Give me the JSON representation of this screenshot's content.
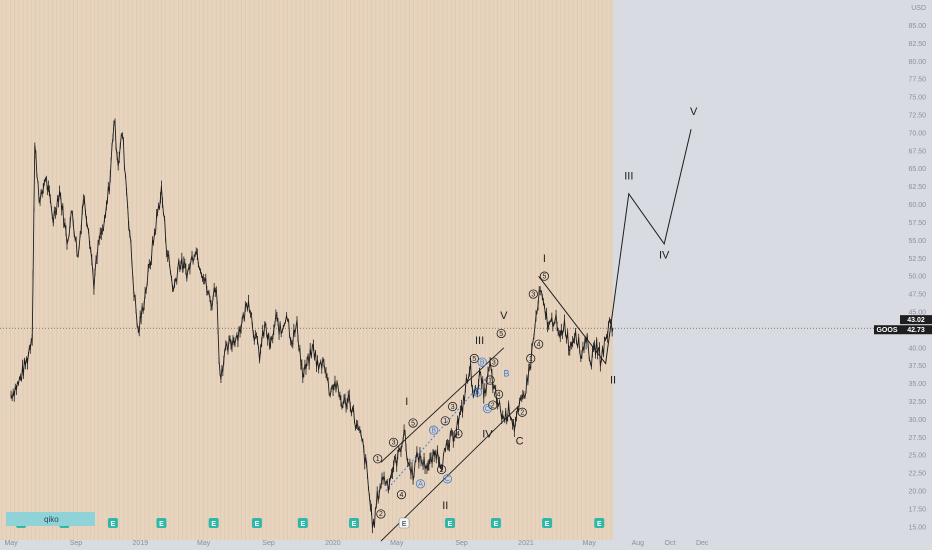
{
  "chart_data": {
    "type": "line",
    "symbol": "GOOS",
    "currency": "USD",
    "last_price": 42.73,
    "high_marker": 43.02,
    "y_axis": {
      "min": 14,
      "max": 88,
      "ticks": [
        "15.00",
        "17.50",
        "20.00",
        "22.50",
        "25.00",
        "27.50",
        "30.00",
        "32.50",
        "35.00",
        "37.50",
        "40.00",
        "42.50",
        "45.00",
        "47.50",
        "50.00",
        "52.50",
        "55.00",
        "57.50",
        "60.00",
        "62.50",
        "65.00",
        "67.50",
        "70.00",
        "72.50",
        "75.00",
        "77.50",
        "80.00",
        "82.50",
        "85.00"
      ]
    },
    "x_axis": {
      "labels": [
        "May",
        "Sep",
        "2019",
        "May",
        "Sep",
        "2020",
        "May",
        "Sep",
        "2021",
        "May",
        "Aug",
        "Oct",
        "Dec"
      ]
    },
    "price_series": [
      [
        "2018-05-01",
        33.5
      ],
      [
        "2018-05-15",
        35.0
      ],
      [
        "2018-06-01",
        38.5
      ],
      [
        "2018-06-10",
        42.0
      ],
      [
        "2018-06-15",
        68.0
      ],
      [
        "2018-06-25",
        60.0
      ],
      [
        "2018-07-05",
        64.0
      ],
      [
        "2018-07-20",
        58.0
      ],
      [
        "2018-08-01",
        62.0
      ],
      [
        "2018-08-15",
        55.0
      ],
      [
        "2018-08-25",
        59.0
      ],
      [
        "2018-09-05",
        52.5
      ],
      [
        "2018-09-15",
        61.0
      ],
      [
        "2018-09-25",
        57.0
      ],
      [
        "2018-10-05",
        49.0
      ],
      [
        "2018-10-15",
        55.0
      ],
      [
        "2018-10-25",
        57.0
      ],
      [
        "2018-11-05",
        64.0
      ],
      [
        "2018-11-12",
        72.0
      ],
      [
        "2018-11-20",
        66.0
      ],
      [
        "2018-11-28",
        70.0
      ],
      [
        "2018-12-10",
        58.0
      ],
      [
        "2018-12-20",
        48.0
      ],
      [
        "2018-12-28",
        42.0
      ],
      [
        "2019-01-10",
        47.5
      ],
      [
        "2019-01-20",
        52.0
      ],
      [
        "2019-02-01",
        58.0
      ],
      [
        "2019-02-10",
        62.0
      ],
      [
        "2019-02-20",
        54.0
      ],
      [
        "2019-03-05",
        48.0
      ],
      [
        "2019-03-15",
        52.0
      ],
      [
        "2019-04-01",
        50.5
      ],
      [
        "2019-04-15",
        54.0
      ],
      [
        "2019-05-01",
        50.0
      ],
      [
        "2019-05-15",
        46.0
      ],
      [
        "2019-05-25",
        49.0
      ],
      [
        "2019-06-01",
        36.0
      ],
      [
        "2019-06-10",
        39.0
      ],
      [
        "2019-06-20",
        40.5
      ],
      [
        "2019-07-05",
        42.0
      ],
      [
        "2019-07-15",
        44.0
      ],
      [
        "2019-07-25",
        47.0
      ],
      [
        "2019-08-05",
        42.0
      ],
      [
        "2019-08-15",
        39.0
      ],
      [
        "2019-08-25",
        43.0
      ],
      [
        "2019-09-05",
        40.0
      ],
      [
        "2019-09-15",
        44.0
      ],
      [
        "2019-09-25",
        42.0
      ],
      [
        "2019-10-05",
        45.0
      ],
      [
        "2019-10-15",
        41.0
      ],
      [
        "2019-10-25",
        43.0
      ],
      [
        "2019-11-05",
        36.0
      ],
      [
        "2019-11-15",
        38.0
      ],
      [
        "2019-11-25",
        40.0
      ],
      [
        "2019-12-05",
        37.0
      ],
      [
        "2019-12-15",
        38.5
      ],
      [
        "2019-12-25",
        34.0
      ],
      [
        "2020-01-05",
        35.0
      ],
      [
        "2020-01-20",
        32.0
      ],
      [
        "2020-02-01",
        33.0
      ],
      [
        "2020-02-15",
        29.0
      ],
      [
        "2020-02-25",
        27.0
      ],
      [
        "2020-03-05",
        23.0
      ],
      [
        "2020-03-12",
        18.0
      ],
      [
        "2020-03-18",
        14.8
      ],
      [
        "2020-03-25",
        19.0
      ],
      [
        "2020-04-05",
        22.0
      ],
      [
        "2020-04-15",
        21.0
      ],
      [
        "2020-04-25",
        23.5
      ],
      [
        "2020-05-05",
        25.0
      ],
      [
        "2020-05-15",
        28.5
      ],
      [
        "2020-05-22",
        24.0
      ],
      [
        "2020-06-01",
        22.5
      ],
      [
        "2020-06-10",
        25.0
      ],
      [
        "2020-06-20",
        24.0
      ],
      [
        "2020-07-01",
        23.5
      ],
      [
        "2020-07-15",
        25.5
      ],
      [
        "2020-07-25",
        24.0
      ],
      [
        "2020-08-05",
        26.0
      ],
      [
        "2020-08-20",
        28.5
      ],
      [
        "2020-09-01",
        31.0
      ],
      [
        "2020-09-10",
        35.0
      ],
      [
        "2020-09-18",
        37.0
      ],
      [
        "2020-09-25",
        33.0
      ],
      [
        "2020-10-05",
        36.0
      ],
      [
        "2020-10-15",
        33.5
      ],
      [
        "2020-10-25",
        37.5
      ],
      [
        "2020-11-01",
        34.0
      ],
      [
        "2020-11-10",
        32.0
      ],
      [
        "2020-11-20",
        30.0
      ],
      [
        "2020-12-01",
        31.5
      ],
      [
        "2020-12-10",
        29.0
      ],
      [
        "2020-12-18",
        31.0
      ],
      [
        "2021-01-01",
        34.5
      ],
      [
        "2021-01-10",
        38.0
      ],
      [
        "2021-01-20",
        44.0
      ],
      [
        "2021-01-28",
        48.0
      ],
      [
        "2021-02-05",
        45.0
      ],
      [
        "2021-02-15",
        43.0
      ],
      [
        "2021-02-25",
        44.5
      ],
      [
        "2021-03-05",
        41.0
      ],
      [
        "2021-03-15",
        43.5
      ],
      [
        "2021-03-25",
        40.0
      ],
      [
        "2021-04-05",
        42.5
      ],
      [
        "2021-04-15",
        39.0
      ],
      [
        "2021-04-25",
        41.5
      ],
      [
        "2021-05-05",
        38.0
      ],
      [
        "2021-05-15",
        40.5
      ],
      [
        "2021-05-22",
        38.5
      ],
      [
        "2021-06-01",
        41.0
      ],
      [
        "2021-06-10",
        44.0
      ],
      [
        "2021-06-15",
        42.73
      ]
    ],
    "projection": [
      [
        "2021-01-25",
        50.0
      ],
      [
        "2021-06-01",
        37.8
      ],
      [
        "2021-07-15",
        61.5
      ],
      [
        "2021-09-20",
        54.5
      ],
      [
        "2021-11-10",
        70.5
      ]
    ],
    "channel_lines": [
      [
        [
          "2020-04-01",
          24.0
        ],
        [
          "2020-11-20",
          40.0
        ]
      ],
      [
        [
          "2020-04-01",
          13.0
        ],
        [
          "2020-12-20",
          32.0
        ]
      ],
      [
        [
          "2020-04-10",
          20.0
        ],
        [
          "2020-10-20",
          36.0
        ]
      ]
    ],
    "wave_labels": [
      {
        "text": "I",
        "date": "2020-05-20",
        "price": 32.0,
        "style": "big"
      },
      {
        "text": "II",
        "date": "2020-08-01",
        "price": 17.5,
        "style": "big"
      },
      {
        "text": "III",
        "date": "2020-10-05",
        "price": 40.5,
        "style": "big"
      },
      {
        "text": "IV",
        "date": "2020-10-20",
        "price": 27.5,
        "style": "big"
      },
      {
        "text": "V",
        "date": "2020-11-20",
        "price": 44.0,
        "style": "big"
      },
      {
        "text": "C",
        "date": "2020-12-20",
        "price": 26.5,
        "style": "big"
      },
      {
        "text": "I",
        "date": "2021-02-05",
        "price": 52.0,
        "style": "big"
      },
      {
        "text": "II",
        "date": "2021-06-15",
        "price": 35.0,
        "style": "big"
      },
      {
        "text": "III",
        "date": "2021-07-15",
        "price": 63.5,
        "style": "big"
      },
      {
        "text": "IV",
        "date": "2021-09-20",
        "price": 52.5,
        "style": "big"
      },
      {
        "text": "V",
        "date": "2021-11-15",
        "price": 72.5,
        "style": "big"
      },
      {
        "text": "B",
        "date": "2020-11-25",
        "price": 36.0,
        "style": "blue"
      }
    ],
    "circle_labels": [
      {
        "text": "1",
        "date": "2020-03-26",
        "price": 24.5
      },
      {
        "text": "2",
        "date": "2020-04-01",
        "price": 16.8
      },
      {
        "text": "3",
        "date": "2020-04-25",
        "price": 26.8
      },
      {
        "text": "4",
        "date": "2020-05-10",
        "price": 19.5
      },
      {
        "text": "5",
        "date": "2020-06-01",
        "price": 29.5
      },
      {
        "text": "1",
        "date": "2020-08-01",
        "price": 29.8
      },
      {
        "text": "2",
        "date": "2020-07-25",
        "price": 23.0
      },
      {
        "text": "3",
        "date": "2020-08-15",
        "price": 31.8
      },
      {
        "text": "4",
        "date": "2020-08-25",
        "price": 28.0
      },
      {
        "text": "5",
        "date": "2020-09-25",
        "price": 38.5
      },
      {
        "text": "5",
        "date": "2020-11-15",
        "price": 42.0
      },
      {
        "text": "3",
        "date": "2020-11-01",
        "price": 38.0
      },
      {
        "text": "1",
        "date": "2020-10-25",
        "price": 35.5
      },
      {
        "text": "2",
        "date": "2020-10-30",
        "price": 32.0
      },
      {
        "text": "4",
        "date": "2020-11-10",
        "price": 33.5
      },
      {
        "text": "2",
        "date": "2020-12-25",
        "price": 31.0
      },
      {
        "text": "1",
        "date": "2021-01-10",
        "price": 38.5
      },
      {
        "text": "3",
        "date": "2021-01-15",
        "price": 47.5
      },
      {
        "text": "4",
        "date": "2021-01-25",
        "price": 40.5
      },
      {
        "text": "5",
        "date": "2021-02-05",
        "price": 50.0
      }
    ],
    "blue_circle_labels": [
      {
        "text": "A",
        "date": "2020-06-15",
        "price": 21.0
      },
      {
        "text": "B",
        "date": "2020-07-10",
        "price": 28.5
      },
      {
        "text": "C",
        "date": "2020-08-05",
        "price": 21.7
      },
      {
        "text": "A",
        "date": "2020-10-01",
        "price": 33.8
      },
      {
        "text": "C",
        "date": "2020-10-20",
        "price": 31.5
      },
      {
        "text": "B",
        "date": "2020-10-10",
        "price": 38.0
      }
    ],
    "earnings_markers": [
      "2018-05-20",
      "2018-08-10",
      "2018-11-10",
      "2019-02-10",
      "2019-05-20",
      "2019-08-10",
      "2019-11-05",
      "2020-02-10",
      "2020-05-15",
      "2020-08-10",
      "2020-11-05",
      "2021-02-10",
      "2021-05-20"
    ],
    "dark_earnings_index": 8
  },
  "legend_text": "qiko",
  "colors": {
    "background": "#d8dbe1",
    "history_band": "#f2cfa0",
    "price_line": "#1e1e1e",
    "wave_blue": "#3a7bd5",
    "price_tag_bg": "#1e1e1e",
    "legend_bg": "#8fd3d9"
  }
}
